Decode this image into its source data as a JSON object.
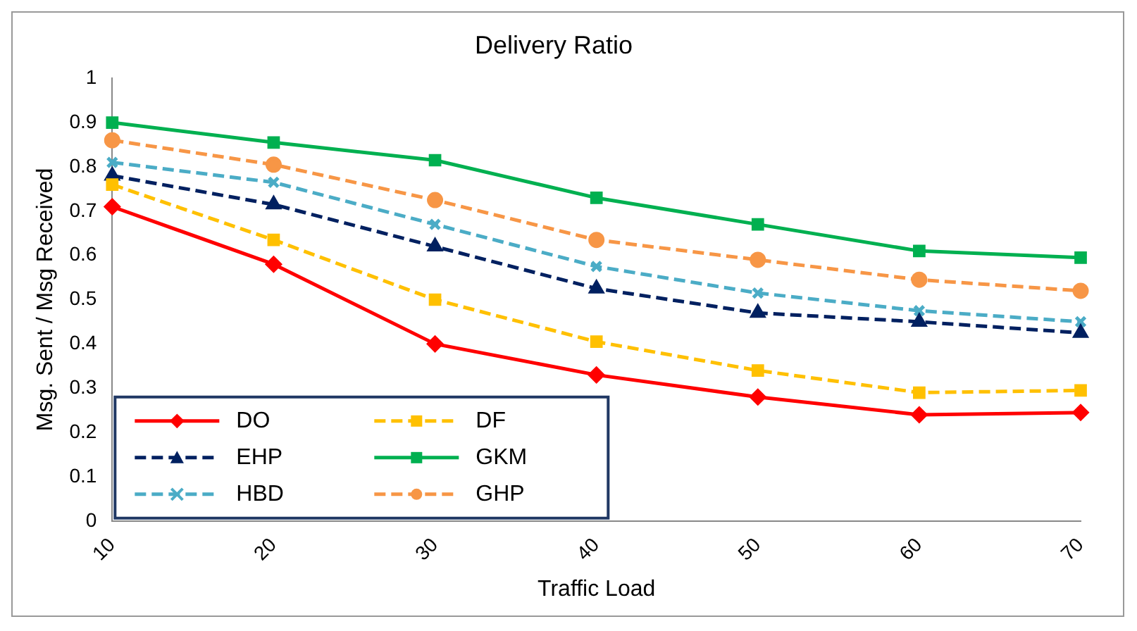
{
  "chart_data": {
    "type": "line",
    "title": "Delivery Ratio",
    "xlabel": "Traffic Load",
    "ylabel": "Msg. Sent / Msg Received",
    "categories": [
      "10",
      "20",
      "30",
      "40",
      "50",
      "60",
      "70"
    ],
    "ylim": [
      0,
      1
    ],
    "yticks": [
      0,
      0.1,
      0.2,
      0.3,
      0.4,
      0.5,
      0.6,
      0.7,
      0.8,
      0.9,
      1
    ],
    "grid": false,
    "legend": "bottom left",
    "series": [
      {
        "name": "DO",
        "color": "#ff0000",
        "marker": "diamond",
        "line_style": "solid",
        "values": [
          0.71,
          0.58,
          0.4,
          0.33,
          0.28,
          0.24,
          0.245
        ]
      },
      {
        "name": "DF",
        "color": "#ffc000",
        "marker": "square",
        "line_style": "dashed",
        "values": [
          0.76,
          0.635,
          0.5,
          0.405,
          0.34,
          0.29,
          0.295
        ]
      },
      {
        "name": "EHP",
        "color": "#002060",
        "marker": "triangle",
        "line_style": "dashed",
        "values": [
          0.78,
          0.715,
          0.62,
          0.525,
          0.47,
          0.45,
          0.425
        ]
      },
      {
        "name": "GKM",
        "color": "#00b050",
        "marker": "square",
        "line_style": "solid",
        "values": [
          0.9,
          0.855,
          0.815,
          0.73,
          0.67,
          0.61,
          0.595
        ]
      },
      {
        "name": "HBD",
        "color": "#4bacc6",
        "marker": "cross",
        "line_style": "dashed",
        "values": [
          0.81,
          0.765,
          0.67,
          0.575,
          0.515,
          0.475,
          0.45
        ]
      },
      {
        "name": "GHP",
        "color": "#f79646",
        "marker": "circle",
        "line_style": "dashed",
        "values": [
          0.86,
          0.805,
          0.725,
          0.635,
          0.59,
          0.545,
          0.52
        ]
      }
    ]
  }
}
